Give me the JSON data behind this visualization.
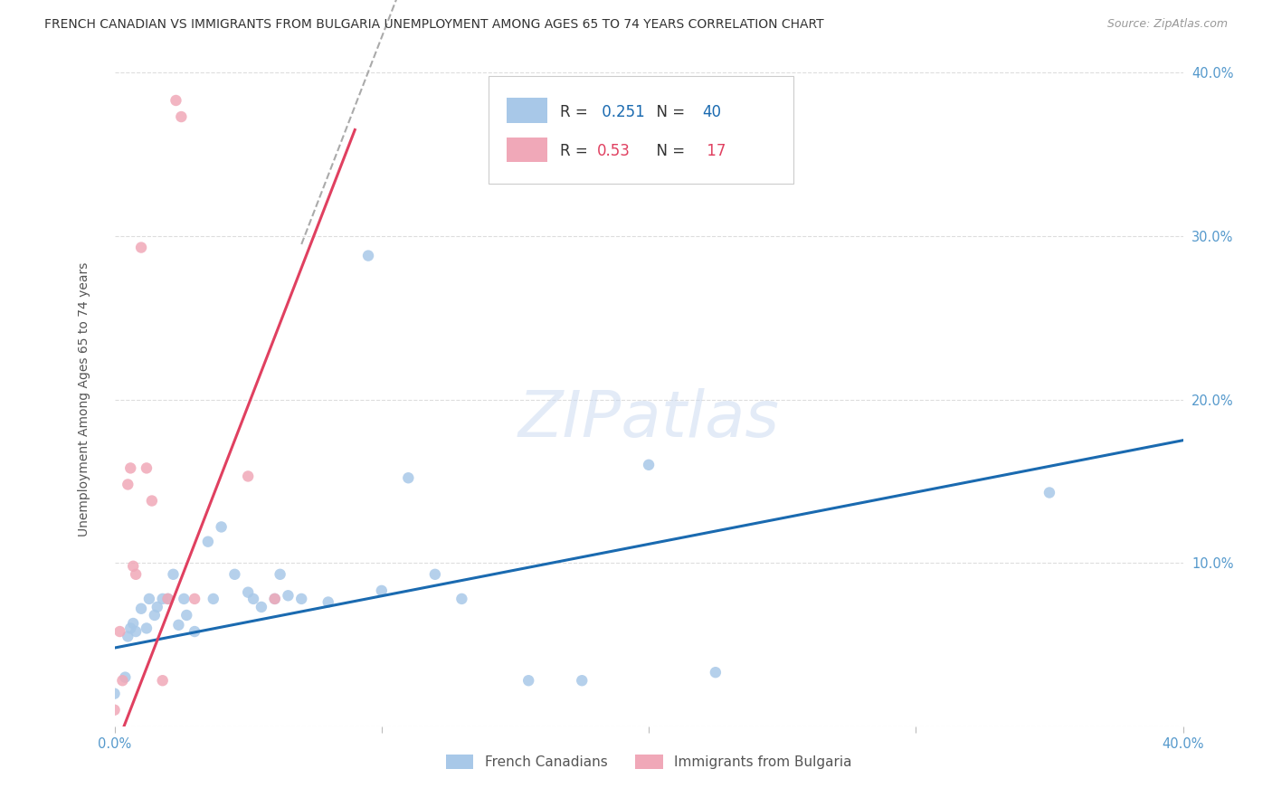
{
  "title": "FRENCH CANADIAN VS IMMIGRANTS FROM BULGARIA UNEMPLOYMENT AMONG AGES 65 TO 74 YEARS CORRELATION CHART",
  "source": "Source: ZipAtlas.com",
  "ylabel": "Unemployment Among Ages 65 to 74 years",
  "xlim": [
    0.0,
    0.4
  ],
  "ylim": [
    0.0,
    0.4
  ],
  "xticks": [
    0.0,
    0.1,
    0.2,
    0.3,
    0.4
  ],
  "yticks": [
    0.1,
    0.2,
    0.3,
    0.4
  ],
  "xticklabels": [
    "0.0%",
    "",
    "",
    "",
    "40.0%"
  ],
  "yticklabels_right": [
    "10.0%",
    "20.0%",
    "30.0%",
    "40.0%"
  ],
  "blue_R": 0.251,
  "blue_N": 40,
  "pink_R": 0.53,
  "pink_N": 17,
  "blue_color": "#a8c8e8",
  "pink_color": "#f0a8b8",
  "blue_line_color": "#1a6ab0",
  "pink_line_color": "#e04060",
  "blue_scatter": [
    [
      0.0,
      0.02
    ],
    [
      0.004,
      0.03
    ],
    [
      0.005,
      0.055
    ],
    [
      0.006,
      0.06
    ],
    [
      0.007,
      0.063
    ],
    [
      0.008,
      0.058
    ],
    [
      0.01,
      0.072
    ],
    [
      0.012,
      0.06
    ],
    [
      0.013,
      0.078
    ],
    [
      0.015,
      0.068
    ],
    [
      0.016,
      0.073
    ],
    [
      0.018,
      0.078
    ],
    [
      0.02,
      0.078
    ],
    [
      0.022,
      0.093
    ],
    [
      0.024,
      0.062
    ],
    [
      0.026,
      0.078
    ],
    [
      0.027,
      0.068
    ],
    [
      0.03,
      0.058
    ],
    [
      0.035,
      0.113
    ],
    [
      0.037,
      0.078
    ],
    [
      0.04,
      0.122
    ],
    [
      0.045,
      0.093
    ],
    [
      0.05,
      0.082
    ],
    [
      0.052,
      0.078
    ],
    [
      0.055,
      0.073
    ],
    [
      0.06,
      0.078
    ],
    [
      0.062,
      0.093
    ],
    [
      0.065,
      0.08
    ],
    [
      0.07,
      0.078
    ],
    [
      0.08,
      0.076
    ],
    [
      0.095,
      0.288
    ],
    [
      0.1,
      0.083
    ],
    [
      0.11,
      0.152
    ],
    [
      0.12,
      0.093
    ],
    [
      0.13,
      0.078
    ],
    [
      0.155,
      0.028
    ],
    [
      0.175,
      0.028
    ],
    [
      0.2,
      0.16
    ],
    [
      0.225,
      0.033
    ],
    [
      0.35,
      0.143
    ]
  ],
  "pink_scatter": [
    [
      0.0,
      0.01
    ],
    [
      0.002,
      0.058
    ],
    [
      0.003,
      0.028
    ],
    [
      0.005,
      0.148
    ],
    [
      0.006,
      0.158
    ],
    [
      0.007,
      0.098
    ],
    [
      0.008,
      0.093
    ],
    [
      0.01,
      0.293
    ],
    [
      0.012,
      0.158
    ],
    [
      0.014,
      0.138
    ],
    [
      0.018,
      0.028
    ],
    [
      0.02,
      0.078
    ],
    [
      0.023,
      0.383
    ],
    [
      0.025,
      0.373
    ],
    [
      0.03,
      0.078
    ],
    [
      0.05,
      0.153
    ],
    [
      0.06,
      0.078
    ]
  ],
  "blue_trendline": [
    [
      0.0,
      0.048
    ],
    [
      0.4,
      0.175
    ]
  ],
  "pink_trendline_solid": [
    [
      0.0,
      -0.015
    ],
    [
      0.09,
      0.365
    ]
  ],
  "pink_trendline_dashed": [
    [
      0.07,
      0.295
    ],
    [
      0.23,
      0.97
    ]
  ],
  "title_fontsize": 10.0,
  "axis_label_fontsize": 10,
  "tick_fontsize": 10.5,
  "source_fontsize": 9,
  "marker_size": 80,
  "background_color": "#ffffff",
  "grid_color": "#dddddd"
}
